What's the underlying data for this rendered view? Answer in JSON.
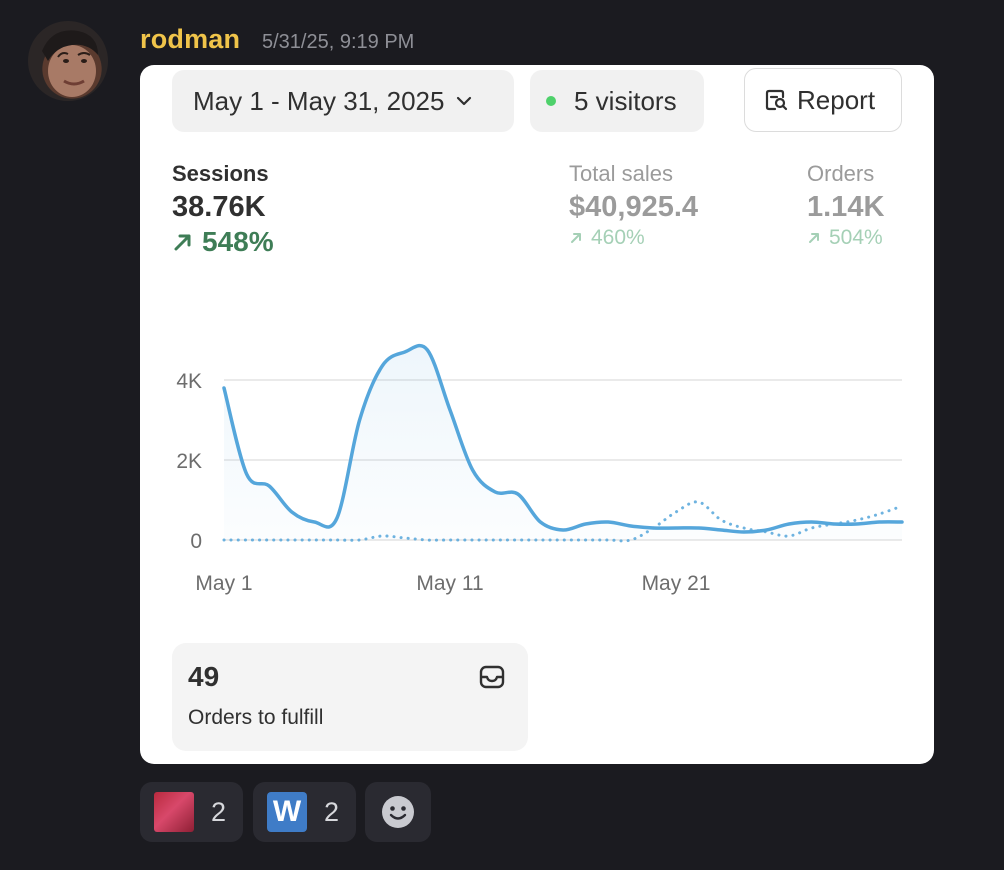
{
  "message": {
    "username": "rodman",
    "timestamp": "5/31/25, 9:19 PM"
  },
  "card": {
    "date_range": "May 1 - May 31, 2025",
    "visitors": "5 visitors",
    "report_label": "Report",
    "metrics": {
      "sessions": {
        "label": "Sessions",
        "value": "38.76K",
        "delta": "548%"
      },
      "total_sales": {
        "label": "Total sales",
        "value": "$40,925.4",
        "delta": "460%"
      },
      "orders": {
        "label": "Orders",
        "value": "1.14K",
        "delta": "504%"
      }
    },
    "fulfill": {
      "count": "49",
      "label": "Orders to fulfill"
    }
  },
  "chart_data": {
    "type": "line",
    "x_ticks": [
      "May 1",
      "May 11",
      "May 21"
    ],
    "y_ticks": [
      "0",
      "2K",
      "4K"
    ],
    "ylim": [
      0,
      4800
    ],
    "x": [
      1,
      2,
      3,
      4,
      5,
      6,
      7,
      8,
      9,
      10,
      11,
      12,
      13,
      14,
      15,
      16,
      17,
      18,
      19,
      20,
      21,
      22,
      23,
      24,
      25,
      26,
      27,
      28,
      29,
      30,
      31
    ],
    "series": [
      {
        "style": "solid",
        "values": [
          3800,
          1650,
          1350,
          700,
          450,
          550,
          3000,
          4350,
          4700,
          4750,
          3250,
          1750,
          1200,
          1150,
          450,
          250,
          400,
          450,
          350,
          300,
          300,
          300,
          250,
          200,
          250,
          400,
          450,
          400,
          400,
          450,
          450
        ]
      },
      {
        "style": "dotted",
        "values": [
          0,
          0,
          0,
          0,
          0,
          0,
          0,
          100,
          50,
          0,
          0,
          0,
          0,
          0,
          0,
          0,
          0,
          0,
          0,
          300,
          700,
          950,
          500,
          300,
          200,
          100,
          300,
          400,
          500,
          650,
          850
        ]
      }
    ],
    "colors": {
      "line": "#55a6db",
      "grid": "#e3e3e3",
      "axis_text": "#6d6d6d"
    }
  },
  "reactions": [
    {
      "emoji": "red-custom-emoji",
      "count": "2"
    },
    {
      "emoji": "w-letter-emoji",
      "count": "2"
    },
    {
      "emoji": "add-reaction-icon"
    }
  ]
}
